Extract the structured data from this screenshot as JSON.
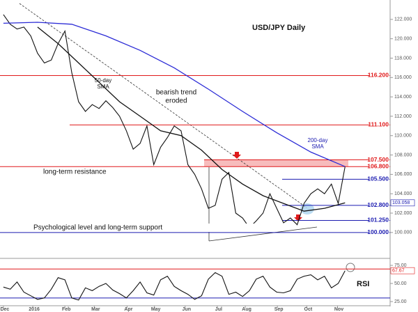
{
  "chart_data": [
    {
      "type": "line",
      "title": "USD/JPY Daily",
      "x": [
        0,
        1,
        2,
        3,
        4,
        5,
        6,
        7,
        8,
        9,
        10,
        11,
        12,
        13,
        14,
        15,
        16,
        17,
        18,
        19,
        20,
        21,
        22,
        23,
        24,
        25,
        26,
        27,
        28,
        29,
        30,
        31,
        32,
        33,
        34,
        35,
        36,
        37,
        38,
        39,
        40,
        41,
        42,
        43,
        44,
        45,
        46,
        47,
        48,
        49,
        50
      ],
      "xlim": [
        -0.5,
        56.6
      ],
      "xticks": [
        {
          "value": 0,
          "label": "Dec"
        },
        {
          "value": 4.3,
          "label": "2016"
        },
        {
          "value": 9,
          "label": "Feb"
        },
        {
          "value": 13.3,
          "label": "Mar"
        },
        {
          "value": 18.1,
          "label": "Apr"
        },
        {
          "value": 22.1,
          "label": "May"
        },
        {
          "value": 26.6,
          "label": "Jun"
        },
        {
          "value": 31.3,
          "label": "Jul"
        },
        {
          "value": 35.4,
          "label": "Aug"
        },
        {
          "value": 40.1,
          "label": "Sep"
        },
        {
          "value": 44.4,
          "label": "Oct"
        },
        {
          "value": 48.9,
          "label": "Nov"
        }
      ],
      "ylim": [
        97.4,
        124
      ],
      "yticks": [
        {
          "value": 100,
          "label": "100.000"
        },
        {
          "value": 102,
          "label": "102.000"
        },
        {
          "value": 104,
          "label": "104.000"
        },
        {
          "value": 106,
          "label": "106.000"
        },
        {
          "value": 108,
          "label": "108.000"
        },
        {
          "value": 110,
          "label": "110.000"
        },
        {
          "value": 112,
          "label": "112.000"
        },
        {
          "value": 114,
          "label": "114.000"
        },
        {
          "value": 116,
          "label": "116.000"
        },
        {
          "value": 118,
          "label": "118.000"
        },
        {
          "value": 120,
          "label": "120.000"
        },
        {
          "value": 122,
          "label": "122.000"
        }
      ],
      "series": [
        {
          "color": "#111111",
          "values": [
            122.5,
            121.5,
            121.0,
            121.2,
            120.3,
            118.5,
            117.5,
            117.8,
            119.5,
            120.8,
            116.5,
            113.5,
            112.5,
            113.2,
            112.8,
            113.6,
            112.9,
            112.0,
            110.5,
            108.6,
            109.2,
            111.0,
            107.0,
            108.8,
            109.8,
            111.0,
            110.5,
            107.0,
            106.0,
            104.5,
            102.5,
            102.8,
            105.5,
            106.2,
            102.0,
            101.5,
            100.5,
            101.2,
            102.0,
            104.0,
            102.5,
            101.0,
            101.5,
            100.8,
            103.0,
            104.0,
            104.5,
            104.0,
            105.0,
            103.0,
            106.8
          ]
        },
        {
          "color": "#111111",
          "x": [
            5,
            8,
            11,
            14,
            17,
            20,
            23,
            26,
            29,
            32,
            35,
            38,
            41,
            44,
            47,
            50
          ],
          "values": [
            121.2,
            119.5,
            117.5,
            115.5,
            113.5,
            112,
            110.5,
            110,
            108.5,
            106.5,
            105,
            103.8,
            103,
            102.2,
            102.5,
            103.058
          ]
        },
        {
          "color": "#2b2bd6",
          "x": [
            0,
            5,
            10,
            15,
            20,
            25,
            30,
            35,
            40,
            45,
            50
          ],
          "values": [
            121.6,
            121.7,
            121.5,
            120.3,
            118.8,
            117,
            114.8,
            112.5,
            110.3,
            108.3,
            106.8
          ]
        }
      ],
      "levels": [
        {
          "value": 116.2,
          "label": "116.200",
          "color": "#e0191a"
        },
        {
          "value": 111.1,
          "label": "111.100",
          "color": "#e0191a"
        },
        {
          "value": 107.5,
          "label": "107.500",
          "color": "#e0191a"
        },
        {
          "value": 106.8,
          "label": "106.800",
          "color": "#e0191a"
        },
        {
          "value": 105.5,
          "label": "105.500",
          "color": "#1a1ab0"
        },
        {
          "value": 102.8,
          "label": "102.800",
          "color": "#1a1ab0"
        },
        {
          "value": 101.25,
          "label": "101.250",
          "color": "#1a1ab0"
        },
        {
          "value": 100,
          "label": "100.000",
          "color": "#1a1ab0"
        }
      ],
      "tags": [
        {
          "value": 103.058,
          "label": "103.058",
          "color": "#1a1ab0"
        }
      ],
      "annotations": [
        "50-day",
        "SMA",
        "bearish trend",
        "eroded",
        "200-day",
        "SMA",
        "long-term resistance",
        "Psychological level and long-term support"
      ]
    },
    {
      "type": "line",
      "title": "RSI",
      "x": [
        0,
        1,
        2,
        3,
        4,
        5,
        6,
        7,
        8,
        9,
        10,
        11,
        12,
        13,
        14,
        15,
        16,
        17,
        18,
        19,
        20,
        21,
        22,
        23,
        24,
        25,
        26,
        27,
        28,
        29,
        30,
        31,
        32,
        33,
        34,
        35,
        36,
        37,
        38,
        39,
        40,
        41,
        42,
        43,
        44,
        45,
        46,
        47,
        48,
        49,
        50
      ],
      "xlim": [
        -0.5,
        56.6
      ],
      "ylim": [
        20.2,
        83.7
      ],
      "yticks": [
        {
          "value": 25,
          "label": "25.00"
        },
        {
          "value": 50,
          "label": "50.00"
        },
        {
          "value": 75,
          "label": "75.00"
        }
      ],
      "series": [
        {
          "color": "#111111",
          "values": [
            45,
            42,
            52,
            38,
            33,
            28,
            30,
            42,
            58,
            55,
            30,
            27,
            44,
            40,
            46,
            50,
            41,
            36,
            30,
            40,
            52,
            37,
            34,
            55,
            60,
            46,
            40,
            35,
            28,
            33,
            56,
            65,
            60,
            35,
            38,
            32,
            40,
            56,
            60,
            45,
            38,
            37,
            40,
            56,
            60,
            62,
            55,
            60,
            44,
            50,
            67.67
          ]
        }
      ],
      "levels": [
        {
          "value": 70,
          "color": "#e0191a"
        },
        {
          "value": 30,
          "color": "#1a1ab0"
        }
      ],
      "tags": [
        {
          "value": 67.67,
          "label": "67.67",
          "color": "#e0191a"
        }
      ]
    }
  ]
}
